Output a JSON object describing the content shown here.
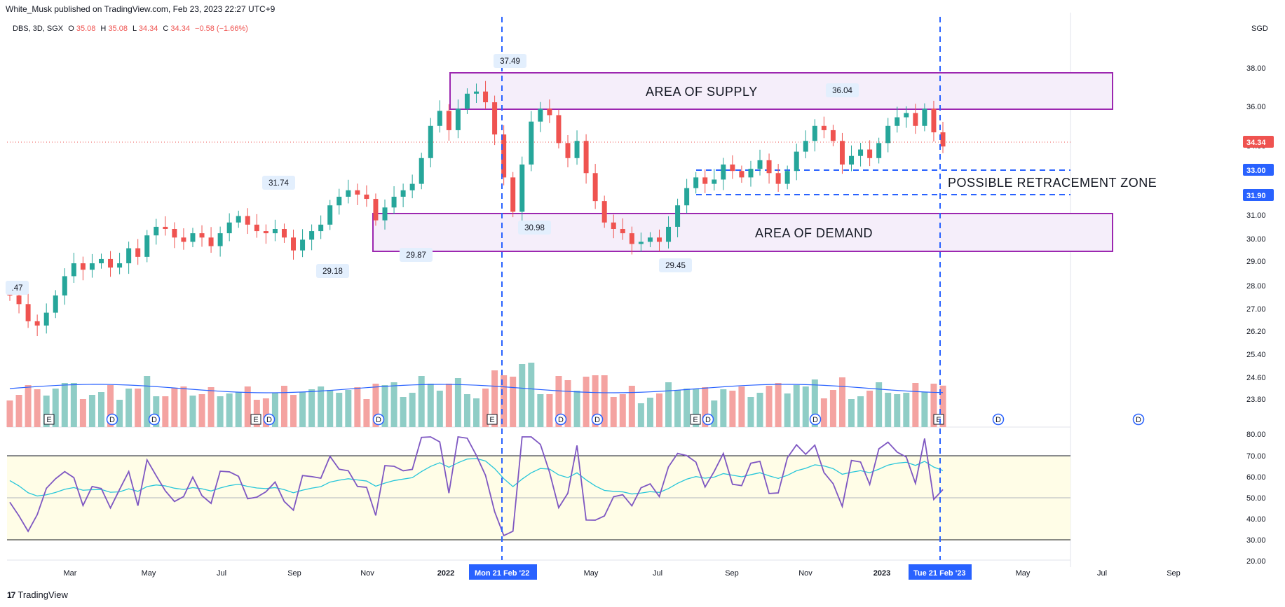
{
  "header": {
    "published_by": "White_Musk published on TradingView.com, Feb 23, 2023 22:27 UTC+9",
    "currency": "SGD"
  },
  "legend": {
    "symbol": "DBS, 3D, SGX",
    "open_label": "O",
    "open": "35.08",
    "high_label": "H",
    "high": "35.08",
    "low_label": "L",
    "low": "34.34",
    "close_label": "C",
    "close": "34.34",
    "change": "−0.58 (−1.66%)"
  },
  "footer": {
    "brand": "TradingView"
  },
  "colors": {
    "up": "#26a69a",
    "down": "#ef5350",
    "up_vol": "#8fcdc6",
    "down_vol": "#f4a3a1",
    "zone_border": "#9c27b0",
    "zone_fill": "#f5eefa",
    "dashed": "#2962ff",
    "rsi_line": "#7e57c2",
    "rsi_ma": "#26c6da",
    "rsi_band": "#fffde7",
    "vol_ma": "#2962ff"
  },
  "chart_data": {
    "type": "candlestick",
    "price_axis_labels": [
      "38.00",
      "36.00",
      "34.00",
      "33.00",
      "32.00",
      "31.00",
      "30.00",
      "29.00",
      "28.00",
      "27.00",
      "26.20",
      "25.40",
      "24.60",
      "23.80"
    ],
    "rsi_axis_labels": [
      "80.00",
      "70.00",
      "60.00",
      "50.00",
      "40.00",
      "30.00",
      "20.00"
    ],
    "time_axis_labels": [
      "Mar",
      "May",
      "Jul",
      "Sep",
      "Nov",
      "2022",
      "May",
      "Jul",
      "Sep",
      "Nov",
      "2023",
      "May",
      "Jul",
      "Sep"
    ],
    "highlighted_dates": [
      "Mon 21 Feb '22",
      "Tue 21 Feb '23"
    ],
    "current_price": "34.34",
    "level_labels": [
      "33.00",
      "31.90"
    ],
    "annotations": {
      "peak_labels": [
        ".47",
        "31.74",
        "29.18",
        "29.87",
        "37.49",
        "30.98",
        "29.45",
        "36.04"
      ],
      "supply_zone": "AREA OF SUPPLY",
      "demand_zone": "AREA OF DEMAND",
      "retracement_zone": "POSSIBLE RETRACEMENT ZONE"
    },
    "zones": {
      "supply": {
        "from": 35.9,
        "to": 37.8
      },
      "demand": {
        "from": 29.55,
        "to": 31.1
      },
      "retracement": {
        "from": 31.9,
        "to": 33.0
      }
    },
    "close_series": [
      27.4,
      27.0,
      26.2,
      26.0,
      26.6,
      27.4,
      28.3,
      28.9,
      28.6,
      28.9,
      29.1,
      28.7,
      28.9,
      29.6,
      29.2,
      30.2,
      30.6,
      30.5,
      30.1,
      29.9,
      30.3,
      30.1,
      29.7,
      30.3,
      30.8,
      31.1,
      30.7,
      30.4,
      30.3,
      30.5,
      30.1,
      29.5,
      30.0,
      30.4,
      30.7,
      31.6,
      32.0,
      32.3,
      32.1,
      31.9,
      30.9,
      31.5,
      32.0,
      32.3,
      32.6,
      33.8,
      35.3,
      36.0,
      35.1,
      36.1,
      36.8,
      36.9,
      36.4,
      34.9,
      32.9,
      31.3,
      33.5,
      35.5,
      36.1,
      35.8,
      34.5,
      33.8,
      34.6,
      33.1,
      31.8,
      30.8,
      30.5,
      30.3,
      29.8,
      29.9,
      30.1,
      29.9,
      30.6,
      31.6,
      32.4,
      32.9,
      32.6,
      32.8,
      33.5,
      33.2,
      32.9,
      33.3,
      33.7,
      33.1,
      32.6,
      33.2,
      34.1,
      34.6,
      35.3,
      35.1,
      34.6,
      33.5,
      33.9,
      34.2,
      33.8,
      34.5,
      35.3,
      35.7,
      35.9,
      35.3,
      36.1,
      35.0,
      34.34
    ],
    "up_volume_marker_labels": [
      "E",
      "D",
      "D",
      "E",
      "D",
      "D",
      "E",
      "D",
      "D",
      "E",
      "D",
      "D",
      "E",
      "D",
      "D",
      "E"
    ]
  }
}
